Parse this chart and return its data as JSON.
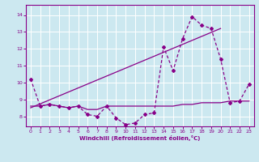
{
  "xlabel": "Windchill (Refroidissement éolien,°C)",
  "background_color": "#cce8f0",
  "grid_color": "#ffffff",
  "line_color": "#880088",
  "xlim": [
    -0.5,
    23.5
  ],
  "ylim": [
    7.4,
    14.6
  ],
  "xticks": [
    0,
    1,
    2,
    3,
    4,
    5,
    6,
    7,
    8,
    9,
    10,
    11,
    12,
    13,
    14,
    15,
    16,
    17,
    18,
    19,
    20,
    21,
    22,
    23
  ],
  "yticks": [
    8,
    9,
    10,
    11,
    12,
    13,
    14
  ],
  "jagged_x": [
    0,
    1,
    2,
    3,
    4,
    5,
    6,
    7,
    8,
    9,
    10,
    11,
    12,
    13,
    14,
    15,
    16,
    17,
    18,
    19,
    20,
    21,
    22,
    23
  ],
  "jagged_y": [
    10.2,
    8.6,
    8.7,
    8.6,
    8.5,
    8.6,
    8.1,
    8.0,
    8.6,
    7.9,
    7.5,
    7.6,
    8.1,
    8.2,
    12.1,
    10.7,
    12.6,
    13.9,
    13.4,
    13.2,
    11.4,
    8.8,
    8.9,
    9.9
  ],
  "trend_x": [
    0,
    20
  ],
  "trend_y": [
    8.5,
    13.2
  ],
  "flat_x": [
    0,
    1,
    2,
    3,
    4,
    5,
    6,
    7,
    8,
    9,
    10,
    11,
    12,
    13,
    14,
    15,
    16,
    17,
    18,
    19,
    20,
    21,
    22,
    23
  ],
  "flat_y": [
    8.6,
    8.6,
    8.7,
    8.6,
    8.5,
    8.6,
    8.4,
    8.4,
    8.6,
    8.6,
    8.6,
    8.6,
    8.6,
    8.6,
    8.6,
    8.6,
    8.7,
    8.7,
    8.8,
    8.8,
    8.8,
    8.9,
    8.9,
    8.9
  ]
}
